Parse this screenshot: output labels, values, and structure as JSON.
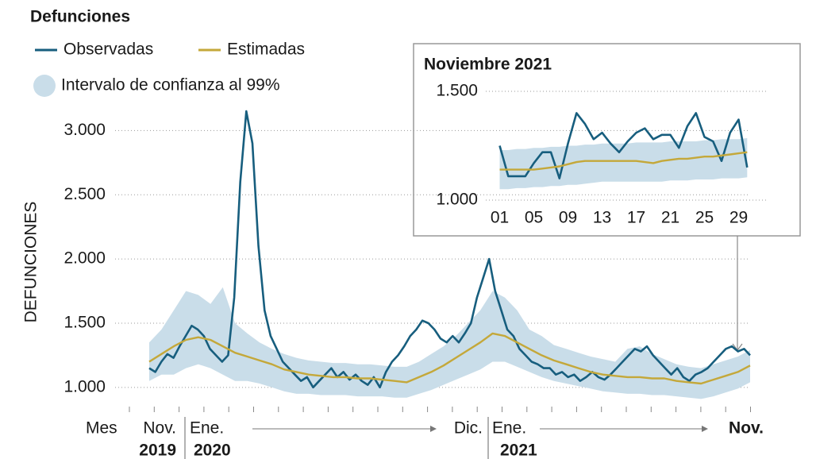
{
  "legend_title": "Defunciones",
  "y_axis_label": "DEFUNCIONES",
  "x_axis_labels": [
    "Mes",
    "Nov.",
    "Ene.",
    "Dic.",
    "Ene.",
    "Nov."
  ],
  "x_axis_years": [
    "2019",
    "2020",
    "2021"
  ],
  "chart_data": [
    {
      "type": "line",
      "ylim": [
        900,
        3200
      ],
      "yticks": [
        {
          "value": 1000,
          "label": "1.000"
        },
        {
          "value": 1500,
          "label": "1.500"
        },
        {
          "value": 2000,
          "label": "2.000"
        },
        {
          "value": 2500,
          "label": "2.500"
        },
        {
          "value": 3000,
          "label": "3.000"
        }
      ],
      "grid": true,
      "band": {
        "name": "Intervalo de confianza al 99%",
        "color": "#c9dde9",
        "upper": [
          1350,
          1450,
          1600,
          1750,
          1720,
          1650,
          1780,
          1500,
          1420,
          1350,
          1300,
          1260,
          1230,
          1210,
          1200,
          1190,
          1190,
          1180,
          1180,
          1170,
          1160,
          1160,
          1200,
          1260,
          1320,
          1400,
          1500,
          1600,
          1750,
          1700,
          1600,
          1450,
          1400,
          1330,
          1300,
          1270,
          1240,
          1220,
          1200,
          1300,
          1320,
          1260,
          1220,
          1180,
          1160,
          1150,
          1180,
          1210,
          1240,
          1290
        ],
        "lower": [
          1050,
          1100,
          1100,
          1150,
          1180,
          1150,
          1100,
          1050,
          1050,
          1030,
          1000,
          970,
          950,
          950,
          940,
          940,
          940,
          930,
          930,
          930,
          920,
          920,
          950,
          980,
          1020,
          1060,
          1100,
          1140,
          1200,
          1200,
          1160,
          1120,
          1080,
          1050,
          1030,
          1010,
          990,
          970,
          960,
          950,
          950,
          940,
          940,
          930,
          920,
          910,
          930,
          960,
          990,
          1040
        ]
      },
      "series": [
        {
          "name": "Observadas",
          "color": "#175e7e",
          "values": [
            1150,
            1120,
            1200,
            1260,
            1230,
            1320,
            1400,
            1480,
            1450,
            1400,
            1300,
            1250,
            1200,
            1250,
            1700,
            2600,
            3150,
            2900,
            2100,
            1600,
            1400,
            1300,
            1200,
            1150,
            1100,
            1050,
            1080,
            1000,
            1050,
            1100,
            1150,
            1080,
            1120,
            1060,
            1100,
            1050,
            1020,
            1080,
            1000,
            1120,
            1200,
            1250,
            1320,
            1400,
            1450,
            1520,
            1500,
            1450,
            1380,
            1350,
            1400,
            1350,
            1420,
            1500,
            1700,
            1850,
            2000,
            1750,
            1600,
            1450,
            1400,
            1300,
            1250,
            1200,
            1180,
            1150,
            1150,
            1100,
            1120,
            1080,
            1100,
            1050,
            1080,
            1120,
            1080,
            1060,
            1100,
            1150,
            1200,
            1250,
            1300,
            1280,
            1320,
            1250,
            1200,
            1150,
            1100,
            1150,
            1080,
            1050,
            1100,
            1120,
            1150,
            1200,
            1250,
            1300,
            1320,
            1280,
            1300,
            1250
          ]
        },
        {
          "name": "Estimadas",
          "color": "#c4a83a",
          "values": [
            1200,
            1260,
            1320,
            1370,
            1390,
            1370,
            1320,
            1270,
            1240,
            1210,
            1180,
            1140,
            1120,
            1100,
            1090,
            1080,
            1080,
            1070,
            1070,
            1060,
            1050,
            1040,
            1080,
            1120,
            1170,
            1230,
            1290,
            1350,
            1420,
            1400,
            1350,
            1300,
            1250,
            1210,
            1180,
            1150,
            1120,
            1100,
            1090,
            1080,
            1080,
            1070,
            1070,
            1050,
            1040,
            1030,
            1060,
            1090,
            1120,
            1170
          ]
        }
      ]
    },
    {
      "type": "line",
      "title": "Noviembre 2021",
      "x": [
        1,
        2,
        3,
        4,
        5,
        6,
        7,
        8,
        9,
        10,
        11,
        12,
        13,
        14,
        15,
        16,
        17,
        18,
        19,
        20,
        21,
        22,
        23,
        24,
        25,
        26,
        27,
        28,
        29,
        30
      ],
      "xlim": [
        -1,
        31
      ],
      "xticks": [
        {
          "value": 1,
          "label": "01"
        },
        {
          "value": 5,
          "label": "05"
        },
        {
          "value": 9,
          "label": "09"
        },
        13,
        17,
        21,
        25,
        29
      ],
      "ylim": [
        1000,
        1500
      ],
      "yticks": [
        {
          "value": 1000,
          "label": "1.000"
        },
        {
          "value": 1500,
          "label": "1.500"
        }
      ],
      "grid": true,
      "band": {
        "color": "#c9dde9",
        "upper": [
          1230,
          1230,
          1235,
          1235,
          1240,
          1240,
          1245,
          1245,
          1250,
          1250,
          1255,
          1255,
          1260,
          1260,
          1260,
          1260,
          1265,
          1265,
          1265,
          1265,
          1270,
          1270,
          1270,
          1270,
          1275,
          1275,
          1280,
          1280,
          1280,
          1285
        ],
        "lower": [
          1050,
          1050,
          1055,
          1055,
          1060,
          1060,
          1065,
          1065,
          1070,
          1070,
          1075,
          1080,
          1085,
          1085,
          1085,
          1085,
          1085,
          1085,
          1085,
          1085,
          1090,
          1090,
          1090,
          1095,
          1095,
          1095,
          1100,
          1100,
          1100,
          1105
        ]
      },
      "series": [
        {
          "name": "Observadas",
          "color": "#175e7e",
          "values": [
            1250,
            1110,
            1110,
            1110,
            1170,
            1220,
            1220,
            1100,
            1260,
            1400,
            1350,
            1280,
            1310,
            1260,
            1220,
            1270,
            1310,
            1330,
            1280,
            1300,
            1300,
            1240,
            1340,
            1400,
            1290,
            1270,
            1180,
            1310,
            1370,
            1150
          ]
        },
        {
          "name": "Estimadas",
          "color": "#c4a83a",
          "values": [
            1140,
            1140,
            1140,
            1140,
            1140,
            1145,
            1150,
            1155,
            1165,
            1175,
            1180,
            1180,
            1180,
            1180,
            1180,
            1180,
            1180,
            1175,
            1170,
            1180,
            1185,
            1190,
            1190,
            1195,
            1200,
            1200,
            1205,
            1210,
            1215,
            1220
          ]
        }
      ]
    }
  ]
}
